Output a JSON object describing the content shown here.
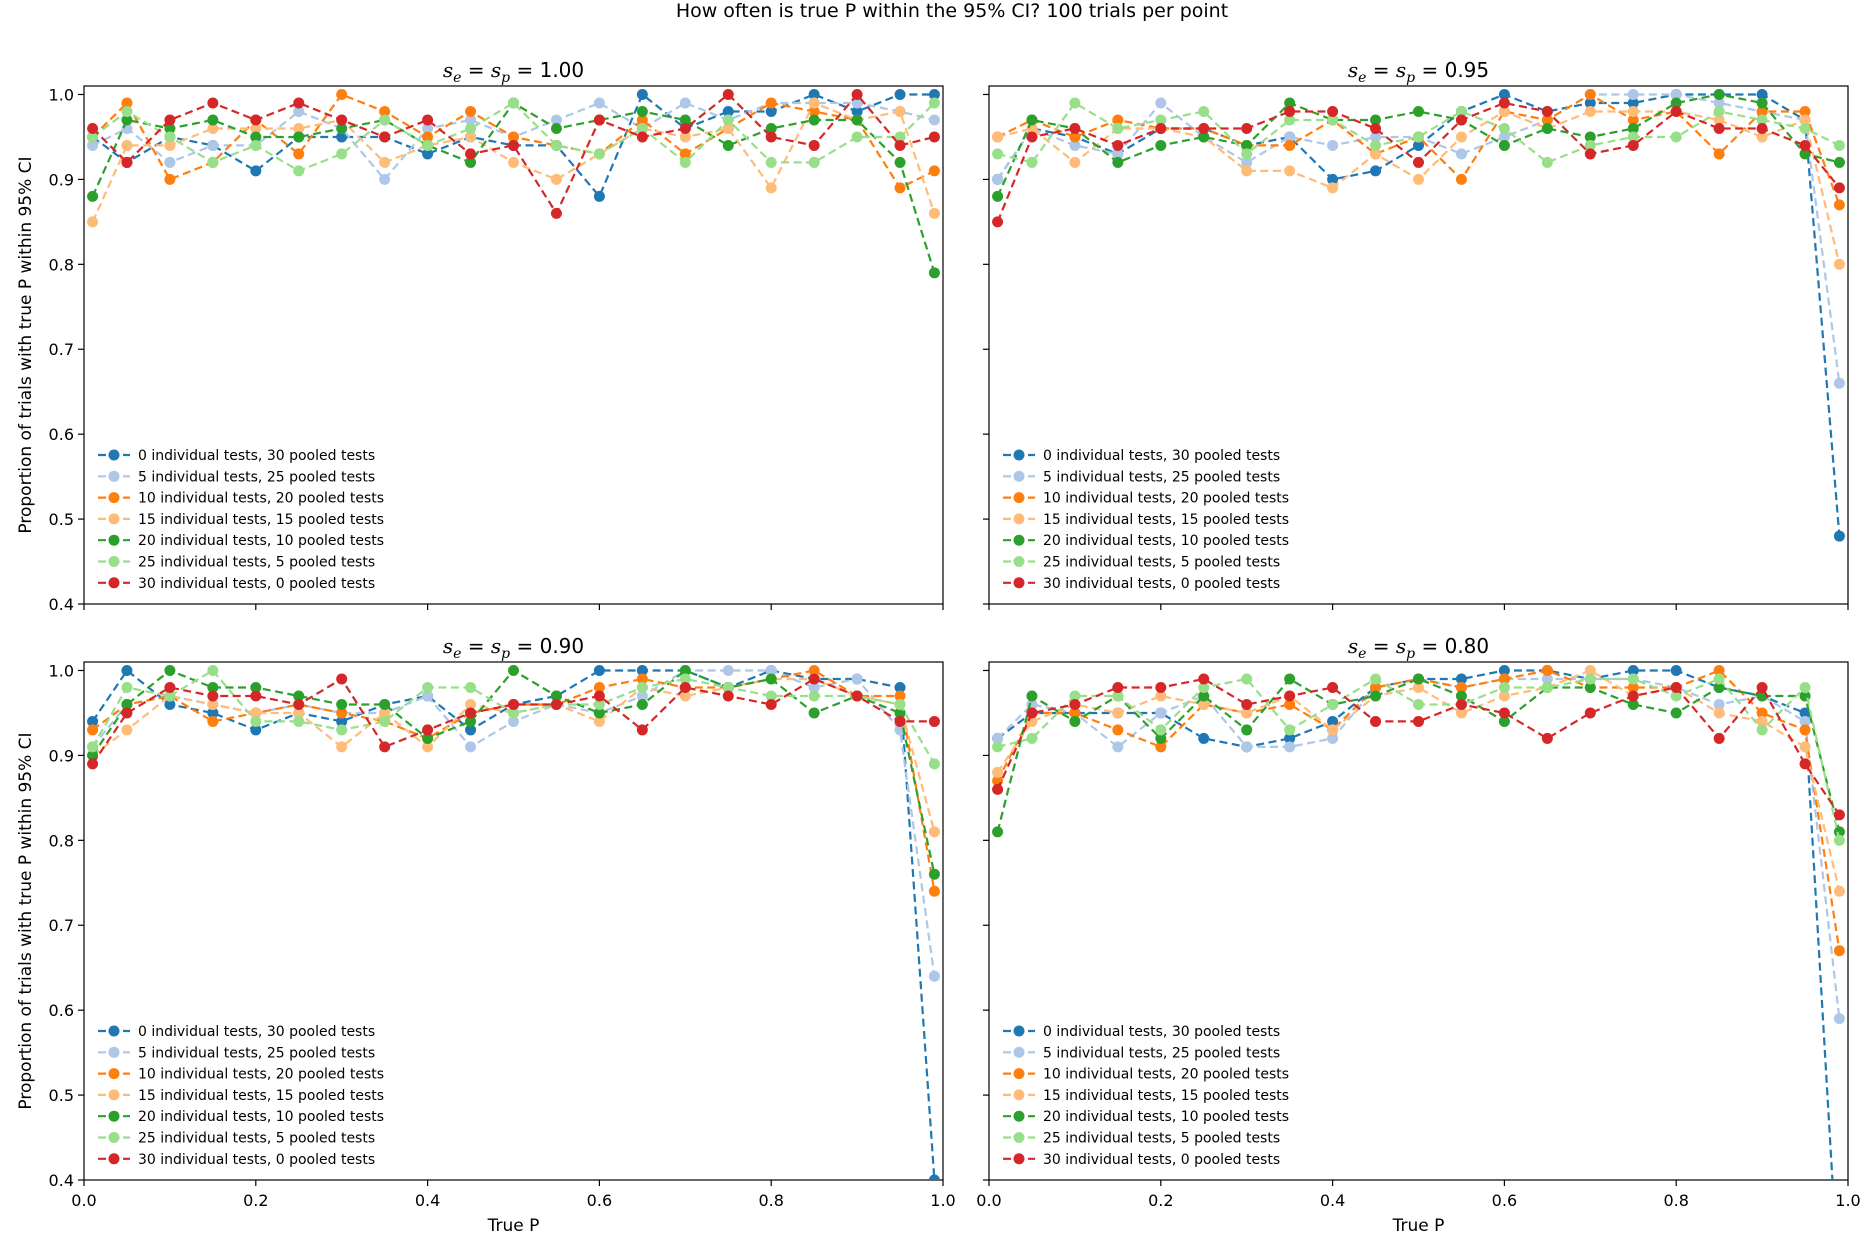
{
  "figure": {
    "suptitle": "How often is true P within the 95% CI? 100 trials per point",
    "xlabel": "True P",
    "ylabel": "Proportion of trials with true P within 95% CI"
  },
  "styles": {
    "colors": [
      "#1f77b4",
      "#aec7e8",
      "#ff7f0e",
      "#ffbb78",
      "#2ca02c",
      "#98df8a",
      "#d62728"
    ],
    "line_style": "dashed",
    "marker": "circle"
  },
  "chart_data": [
    {
      "type": "line",
      "title_text": "s_e = s_p = 1.00",
      "title_value": "1.00",
      "xlim": [
        0,
        1
      ],
      "ylim": [
        0.4,
        1.01
      ],
      "xticks": [
        "0.0",
        "0.2",
        "0.4",
        "0.6",
        "0.8",
        "1.0"
      ],
      "yticks": [
        "0.4",
        "0.5",
        "0.6",
        "0.7",
        "0.8",
        "0.9",
        "1.0"
      ],
      "legend_position": "lower-left",
      "x": [
        0.01,
        0.05,
        0.1,
        0.15,
        0.2,
        0.25,
        0.3,
        0.35,
        0.4,
        0.45,
        0.5,
        0.55,
        0.6,
        0.65,
        0.7,
        0.75,
        0.8,
        0.85,
        0.9,
        0.95,
        0.99
      ],
      "series": [
        {
          "name": "0 individual tests, 30 pooled tests",
          "values": [
            0.95,
            0.92,
            0.95,
            0.94,
            0.91,
            0.95,
            0.95,
            0.95,
            0.93,
            0.95,
            0.94,
            0.94,
            0.88,
            1.0,
            0.96,
            0.98,
            0.98,
            1.0,
            0.98,
            1.0,
            1.0
          ]
        },
        {
          "name": "5 individual tests, 25 pooled tests",
          "values": [
            0.94,
            0.96,
            0.92,
            0.94,
            0.94,
            0.98,
            0.96,
            0.9,
            0.96,
            0.97,
            0.95,
            0.97,
            0.99,
            0.96,
            0.99,
            0.97,
            0.99,
            0.99,
            0.99,
            0.98,
            0.97
          ]
        },
        {
          "name": "10 individual tests, 20 pooled tests",
          "values": [
            0.95,
            0.99,
            0.9,
            0.92,
            0.97,
            0.93,
            1.0,
            0.98,
            0.95,
            0.98,
            0.95,
            0.94,
            0.93,
            0.97,
            0.93,
            0.96,
            0.99,
            0.98,
            0.97,
            0.89,
            0.91
          ]
        },
        {
          "name": "15 individual tests, 15 pooled tests",
          "values": [
            0.85,
            0.94,
            0.94,
            0.96,
            0.96,
            0.96,
            0.97,
            0.92,
            0.94,
            0.95,
            0.92,
            0.9,
            0.93,
            0.96,
            0.95,
            0.96,
            0.89,
            0.99,
            0.97,
            0.98,
            0.86
          ]
        },
        {
          "name": "20 individual tests, 10 pooled tests",
          "values": [
            0.88,
            0.97,
            0.96,
            0.97,
            0.95,
            0.95,
            0.96,
            0.97,
            0.94,
            0.92,
            0.99,
            0.96,
            0.97,
            0.98,
            0.97,
            0.94,
            0.96,
            0.97,
            0.97,
            0.92,
            0.79
          ]
        },
        {
          "name": "25 individual tests, 5 pooled tests",
          "values": [
            0.95,
            0.98,
            0.95,
            0.92,
            0.94,
            0.91,
            0.93,
            0.97,
            0.94,
            0.96,
            0.99,
            0.94,
            0.93,
            0.96,
            0.92,
            0.97,
            0.92,
            0.92,
            0.95,
            0.95,
            0.99
          ]
        },
        {
          "name": "30 individual tests, 0 pooled tests",
          "values": [
            0.96,
            0.92,
            0.97,
            0.99,
            0.97,
            0.99,
            0.97,
            0.95,
            0.97,
            0.93,
            0.94,
            0.86,
            0.97,
            0.95,
            0.96,
            1.0,
            0.95,
            0.94,
            1.0,
            0.94,
            0.95
          ]
        }
      ]
    },
    {
      "type": "line",
      "title_text": "s_e = s_p = 0.95",
      "title_value": "0.95",
      "xlim": [
        0,
        1
      ],
      "ylim": [
        0.4,
        1.01
      ],
      "xticks": [
        "0.0",
        "0.2",
        "0.4",
        "0.6",
        "0.8",
        "1.0"
      ],
      "yticks": [
        "0.4",
        "0.5",
        "0.6",
        "0.7",
        "0.8",
        "0.9",
        "1.0"
      ],
      "legend_position": "lower-left",
      "x": [
        0.01,
        0.05,
        0.1,
        0.15,
        0.2,
        0.25,
        0.3,
        0.35,
        0.4,
        0.45,
        0.5,
        0.55,
        0.6,
        0.65,
        0.7,
        0.75,
        0.8,
        0.85,
        0.9,
        0.95,
        0.99
      ],
      "series": [
        {
          "name": "0 individual tests, 30 pooled tests",
          "values": [
            0.9,
            0.96,
            0.95,
            0.93,
            0.96,
            0.96,
            0.94,
            0.95,
            0.9,
            0.91,
            0.94,
            0.98,
            1.0,
            0.98,
            0.99,
            0.99,
            1.0,
            1.0,
            1.0,
            0.97,
            0.48
          ]
        },
        {
          "name": "5 individual tests, 25 pooled tests",
          "values": [
            0.9,
            0.96,
            0.94,
            0.93,
            0.99,
            0.95,
            0.92,
            0.95,
            0.94,
            0.95,
            0.95,
            0.93,
            0.95,
            0.97,
            1.0,
            1.0,
            1.0,
            0.99,
            0.98,
            0.97,
            0.66
          ]
        },
        {
          "name": "10 individual tests, 20 pooled tests",
          "values": [
            0.95,
            0.97,
            0.95,
            0.97,
            0.96,
            0.96,
            0.94,
            0.94,
            0.97,
            0.93,
            0.95,
            0.9,
            0.98,
            0.97,
            1.0,
            0.97,
            0.98,
            0.93,
            0.98,
            0.98,
            0.87
          ]
        },
        {
          "name": "15 individual tests, 15 pooled tests",
          "values": [
            0.95,
            0.96,
            0.92,
            0.96,
            0.96,
            0.95,
            0.91,
            0.91,
            0.89,
            0.93,
            0.9,
            0.95,
            0.98,
            0.96,
            0.98,
            0.98,
            0.98,
            0.97,
            0.95,
            0.97,
            0.8
          ]
        },
        {
          "name": "20 individual tests, 10 pooled tests",
          "values": [
            0.88,
            0.97,
            0.96,
            0.92,
            0.94,
            0.95,
            0.94,
            0.99,
            0.97,
            0.97,
            0.98,
            0.97,
            0.94,
            0.96,
            0.95,
            0.96,
            0.99,
            1.0,
            0.99,
            0.93,
            0.92
          ]
        },
        {
          "name": "25 individual tests, 5 pooled tests",
          "values": [
            0.93,
            0.92,
            0.99,
            0.96,
            0.97,
            0.98,
            0.93,
            0.97,
            0.97,
            0.94,
            0.95,
            0.98,
            0.96,
            0.92,
            0.94,
            0.95,
            0.95,
            0.98,
            0.97,
            0.96,
            0.94
          ]
        },
        {
          "name": "30 individual tests, 0 pooled tests",
          "values": [
            0.85,
            0.95,
            0.96,
            0.94,
            0.96,
            0.96,
            0.96,
            0.98,
            0.98,
            0.96,
            0.92,
            0.97,
            0.99,
            0.98,
            0.93,
            0.94,
            0.98,
            0.96,
            0.96,
            0.94,
            0.89
          ]
        }
      ]
    },
    {
      "type": "line",
      "title_text": "s_e = s_p = 0.90",
      "title_value": "0.90",
      "xlim": [
        0,
        1
      ],
      "ylim": [
        0.4,
        1.01
      ],
      "xticks": [
        "0.0",
        "0.2",
        "0.4",
        "0.6",
        "0.8",
        "1.0"
      ],
      "yticks": [
        "0.4",
        "0.5",
        "0.6",
        "0.7",
        "0.8",
        "0.9",
        "1.0"
      ],
      "legend_position": "lower-left",
      "x": [
        0.01,
        0.05,
        0.1,
        0.15,
        0.2,
        0.25,
        0.3,
        0.35,
        0.4,
        0.45,
        0.5,
        0.55,
        0.6,
        0.65,
        0.7,
        0.75,
        0.8,
        0.85,
        0.9,
        0.95,
        0.99
      ],
      "series": [
        {
          "name": "0 individual tests, 30 pooled tests",
          "values": [
            0.94,
            1.0,
            0.96,
            0.95,
            0.93,
            0.95,
            0.94,
            0.96,
            0.97,
            0.93,
            0.96,
            0.97,
            1.0,
            1.0,
            1.0,
            0.98,
            1.0,
            0.99,
            0.99,
            0.98,
            0.4
          ]
        },
        {
          "name": "5 individual tests, 25 pooled tests",
          "values": [
            0.91,
            0.96,
            0.97,
            0.96,
            0.95,
            0.96,
            0.95,
            0.95,
            0.97,
            0.91,
            0.94,
            0.96,
            0.95,
            0.97,
            1.0,
            1.0,
            1.0,
            0.98,
            0.99,
            0.93,
            0.64
          ]
        },
        {
          "name": "10 individual tests, 20 pooled tests",
          "values": [
            0.93,
            0.96,
            0.97,
            0.94,
            0.95,
            0.96,
            0.95,
            0.94,
            0.92,
            0.95,
            0.96,
            0.96,
            0.98,
            0.99,
            0.98,
            0.98,
            0.99,
            1.0,
            0.97,
            0.97,
            0.74
          ]
        },
        {
          "name": "15 individual tests, 15 pooled tests",
          "values": [
            0.9,
            0.93,
            0.97,
            0.96,
            0.95,
            0.95,
            0.91,
            0.95,
            0.91,
            0.96,
            0.95,
            0.96,
            0.94,
            0.98,
            0.97,
            0.98,
            0.99,
            0.99,
            0.97,
            0.96,
            0.81
          ]
        },
        {
          "name": "20 individual tests, 10 pooled tests",
          "values": [
            0.9,
            0.96,
            1.0,
            0.98,
            0.98,
            0.97,
            0.96,
            0.96,
            0.92,
            0.94,
            1.0,
            0.97,
            0.95,
            0.96,
            1.0,
            0.98,
            0.99,
            0.95,
            0.97,
            0.95,
            0.76
          ]
        },
        {
          "name": "25 individual tests, 5 pooled tests",
          "values": [
            0.91,
            0.98,
            0.97,
            1.0,
            0.94,
            0.94,
            0.93,
            0.94,
            0.98,
            0.98,
            0.95,
            0.96,
            0.96,
            0.98,
            0.99,
            0.98,
            0.97,
            0.97,
            0.97,
            0.96,
            0.89
          ]
        },
        {
          "name": "30 individual tests, 0 pooled tests",
          "values": [
            0.89,
            0.95,
            0.98,
            0.97,
            0.97,
            0.96,
            0.99,
            0.91,
            0.93,
            0.95,
            0.96,
            0.96,
            0.97,
            0.93,
            0.98,
            0.97,
            0.96,
            0.99,
            0.97,
            0.94,
            0.94
          ]
        }
      ]
    },
    {
      "type": "line",
      "title_text": "s_e = s_p = 0.80",
      "title_value": "0.80",
      "xlim": [
        0,
        1
      ],
      "ylim": [
        0.4,
        1.01
      ],
      "xticks": [
        "0.0",
        "0.2",
        "0.4",
        "0.6",
        "0.8",
        "1.0"
      ],
      "yticks": [
        "0.4",
        "0.5",
        "0.6",
        "0.7",
        "0.8",
        "0.9",
        "1.0"
      ],
      "legend_position": "lower-left",
      "x": [
        0.01,
        0.05,
        0.1,
        0.15,
        0.2,
        0.25,
        0.3,
        0.35,
        0.4,
        0.45,
        0.5,
        0.55,
        0.6,
        0.65,
        0.7,
        0.75,
        0.8,
        0.85,
        0.9,
        0.95,
        0.99
      ],
      "series": [
        {
          "name": "0 individual tests, 30 pooled tests",
          "values": [
            0.92,
            0.95,
            0.95,
            0.95,
            0.95,
            0.92,
            0.91,
            0.92,
            0.94,
            0.98,
            0.99,
            0.99,
            1.0,
            1.0,
            0.99,
            1.0,
            1.0,
            0.98,
            0.97,
            0.95,
            0.26
          ]
        },
        {
          "name": "5 individual tests, 25 pooled tests",
          "values": [
            0.92,
            0.96,
            0.95,
            0.91,
            0.95,
            0.97,
            0.91,
            0.91,
            0.92,
            0.98,
            0.99,
            0.98,
            0.99,
            0.99,
            0.99,
            0.99,
            0.98,
            0.96,
            0.97,
            0.94,
            0.59
          ]
        },
        {
          "name": "10 individual tests, 20 pooled tests",
          "values": [
            0.87,
            0.95,
            0.95,
            0.93,
            0.91,
            0.96,
            0.95,
            0.96,
            0.93,
            0.98,
            0.99,
            0.98,
            0.99,
            1.0,
            0.98,
            0.98,
            0.98,
            1.0,
            0.95,
            0.93,
            0.67
          ]
        },
        {
          "name": "15 individual tests, 15 pooled tests",
          "values": [
            0.88,
            0.94,
            0.96,
            0.95,
            0.97,
            0.96,
            0.95,
            0.97,
            0.93,
            0.97,
            0.98,
            0.95,
            0.97,
            0.98,
            1.0,
            0.97,
            0.98,
            0.95,
            0.94,
            0.91,
            0.74
          ]
        },
        {
          "name": "20 individual tests, 10 pooled tests",
          "values": [
            0.81,
            0.97,
            0.94,
            0.97,
            0.92,
            0.97,
            0.93,
            0.99,
            0.96,
            0.97,
            0.99,
            0.97,
            0.94,
            0.98,
            0.98,
            0.96,
            0.95,
            0.98,
            0.97,
            0.97,
            0.81
          ]
        },
        {
          "name": "25 individual tests, 5 pooled tests",
          "values": [
            0.91,
            0.92,
            0.97,
            0.97,
            0.93,
            0.98,
            0.99,
            0.93,
            0.96,
            0.99,
            0.96,
            0.96,
            0.98,
            0.98,
            0.99,
            0.99,
            0.97,
            0.99,
            0.93,
            0.98,
            0.8
          ]
        },
        {
          "name": "30 individual tests, 0 pooled tests",
          "values": [
            0.86,
            0.95,
            0.96,
            0.98,
            0.98,
            0.99,
            0.96,
            0.97,
            0.98,
            0.94,
            0.94,
            0.96,
            0.95,
            0.92,
            0.95,
            0.97,
            0.98,
            0.92,
            0.98,
            0.89,
            0.83
          ]
        }
      ]
    }
  ]
}
